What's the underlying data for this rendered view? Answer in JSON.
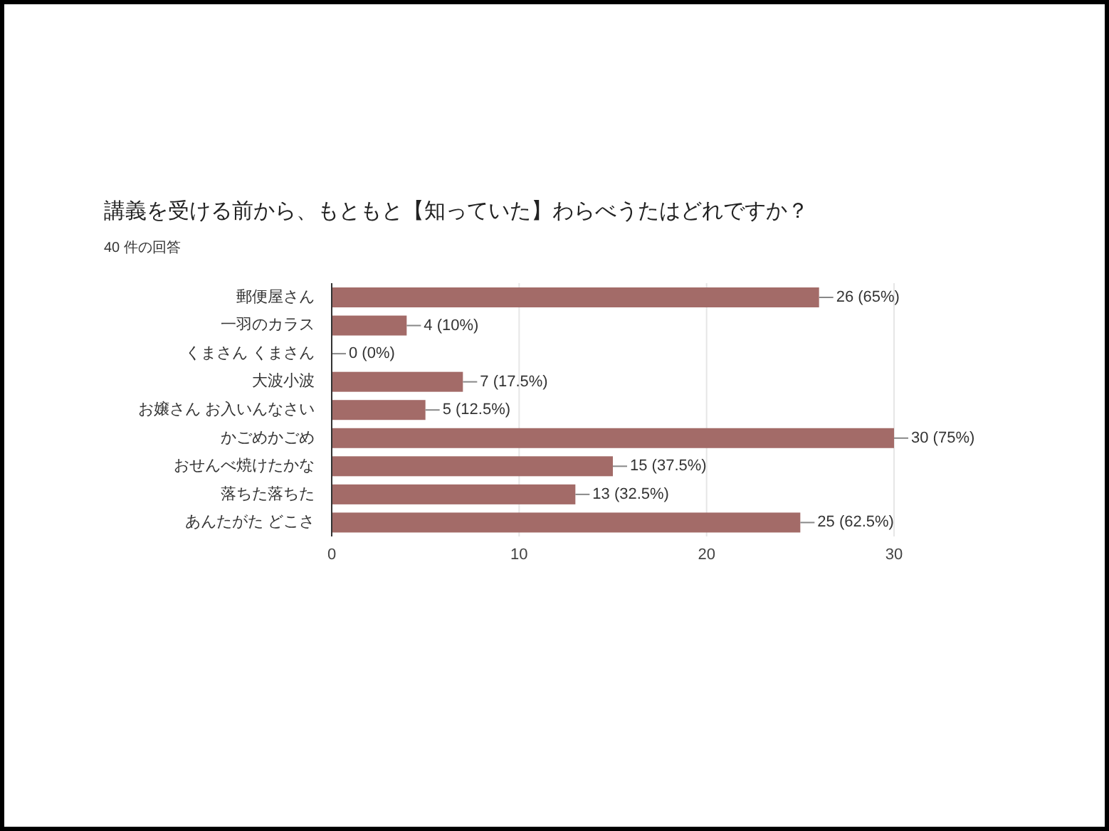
{
  "chart_data": {
    "type": "bar",
    "orientation": "horizontal",
    "title": "講義を受ける前から、もともと【知っていた】わらべうたはどれですか？",
    "subtitle": "40 件の回答",
    "categories": [
      "郵便屋さん",
      "一羽のカラス",
      "くまさん くまさん",
      "大波小波",
      "お嬢さん お入いんなさい",
      "かごめかごめ",
      "おせんべ焼けたかな",
      "落ちた落ちた",
      "あんたがた どこさ"
    ],
    "values": [
      26,
      4,
      0,
      7,
      5,
      30,
      15,
      13,
      25
    ],
    "value_labels": [
      "26 (65%)",
      "4 (10%)",
      "0 (0%)",
      "7 (17.5%)",
      "5 (12.5%)",
      "30 (75%)",
      "15 (37.5%)",
      "13 (32.5%)",
      "25 (62.5%)"
    ],
    "color": "#a36b68",
    "xlim": [
      0,
      30
    ],
    "xticks": [
      0,
      10,
      20,
      30
    ],
    "grid": "x",
    "legend": false
  }
}
